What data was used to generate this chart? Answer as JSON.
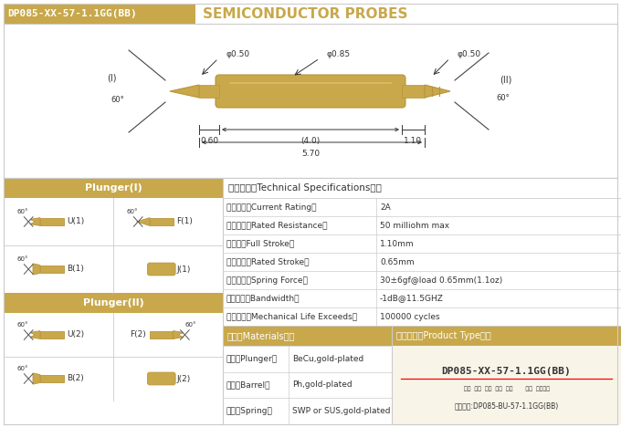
{
  "title_box_text": "DP085-XX-57-1.1GG(BB)",
  "title_right_text": "SEMICONDUCTOR PROBES",
  "gold_color": "#C8A84B",
  "gold_dark": "#B8943A",
  "gold_light": "#D4B86A",
  "bg_color": "#FFFFFF",
  "border_color": "#CCCCCC",
  "text_color": "#333333",
  "specs": [
    [
      "额定电流（Current Rating）",
      "2A"
    ],
    [
      "额定电阔（Rated Resistance）",
      "50 milliohm max"
    ],
    [
      "满行程（Full Stroke）",
      "1.10mm"
    ],
    [
      "额定行程（Rated Stroke）",
      "0.65mm"
    ],
    [
      "额定弹力（Spring Force）",
      "30±6gf@load 0.65mm(1.1oz)"
    ],
    [
      "频率带宽（Bandwidth）",
      "-1dB@11.5GHZ"
    ],
    [
      "测试寿命（Mechanical Life Exceeds）",
      "100000 cycles"
    ]
  ],
  "materials": [
    [
      "针头（Plunger）",
      "BeCu,gold-plated"
    ],
    [
      "针管（Barrel）",
      "Ph,gold-plated"
    ],
    [
      "弹簧（Spring）",
      "SWP or SUS,gold-plated"
    ]
  ],
  "tech_header": "技术要求（Technical Specifications）：",
  "mat_header": "材质（Materials）：",
  "prod_header": "成品型号（Product Type）：",
  "plunger1_header": "Plunger(I)",
  "plunger2_header": "Plunger(II)",
  "product_model": "DP085-XX-57-1.1GG(BB)",
  "col_labels": "系列  规格  头型  总长  弹力       镀金  针头材质",
  "order_example": "订购举例:DP085-BU-57-1.1GG(BB)"
}
